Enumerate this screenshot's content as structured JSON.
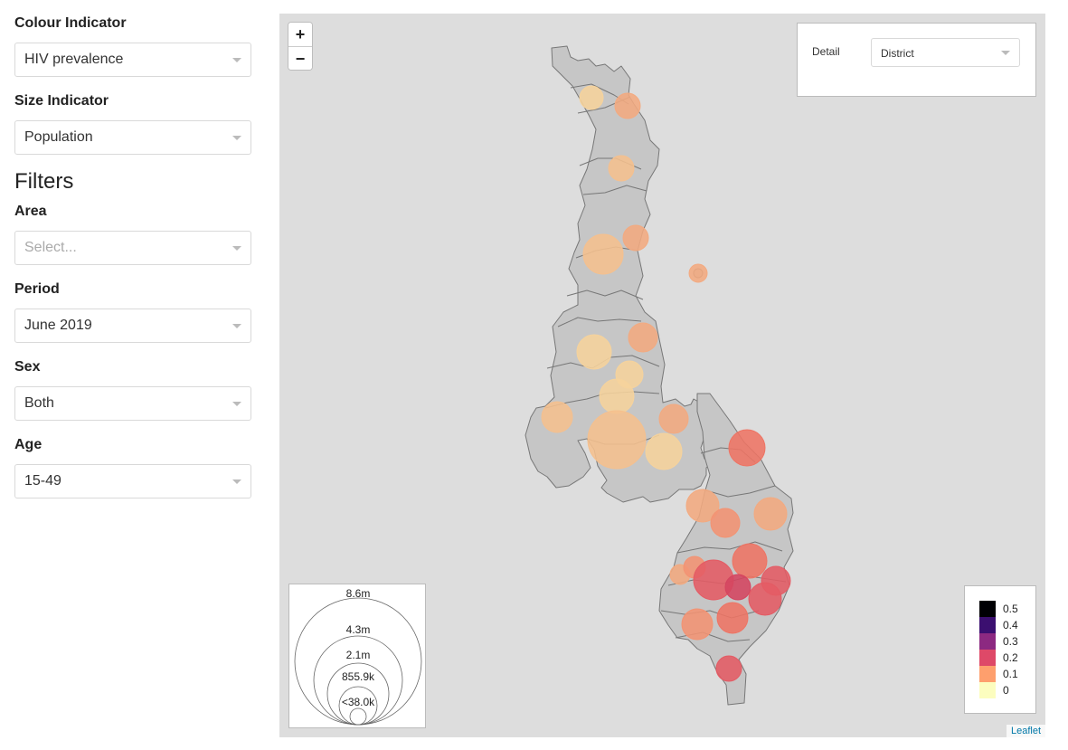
{
  "sidebar": {
    "colour_indicator": {
      "label": "Colour Indicator",
      "value": "HIV prevalence"
    },
    "size_indicator": {
      "label": "Size Indicator",
      "value": "Population"
    },
    "filters_heading": "Filters",
    "area": {
      "label": "Area",
      "placeholder": "Select..."
    },
    "period": {
      "label": "Period",
      "value": "June 2019"
    },
    "sex": {
      "label": "Sex",
      "value": "Both"
    },
    "age": {
      "label": "Age",
      "value": "15-49"
    }
  },
  "map": {
    "zoom_in": "+",
    "zoom_out": "−",
    "detail_label": "Detail",
    "detail_value": "District",
    "attribution": "Leaflet",
    "size_legend": [
      "8.6m",
      "4.3m",
      "2.1m",
      "855.9k",
      "<38.0k"
    ],
    "color_legend": [
      {
        "label": "0.5",
        "color": "#000004"
      },
      {
        "label": "0.4",
        "color": "#3b0f70"
      },
      {
        "label": "0.3",
        "color": "#8c2981"
      },
      {
        "label": "0.2",
        "color": "#de4968"
      },
      {
        "label": "0.1",
        "color": "#fe9f6d"
      },
      {
        "label": "0",
        "color": "#fcfdbf"
      }
    ],
    "colors": {
      "land": "#c6c6c6",
      "border": "#777777",
      "background": "#dddddd"
    }
  }
}
